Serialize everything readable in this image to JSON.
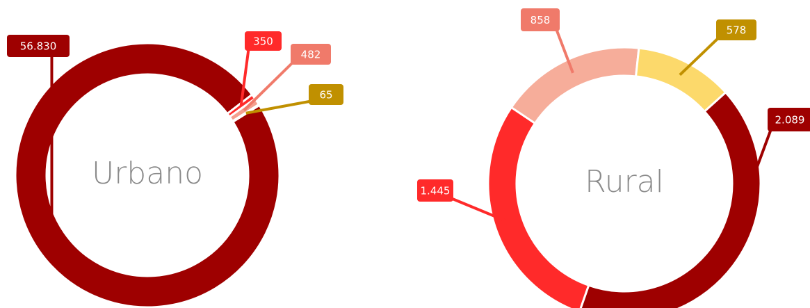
{
  "chart_data": [
    {
      "type": "donut",
      "title": "Urbano",
      "values": [
        56830,
        350,
        482,
        65
      ],
      "value_labels": [
        "56.830",
        "350",
        "482",
        "65"
      ],
      "colors": [
        "#9e0000",
        "#ff2a2a",
        "#f4a090",
        "#c09000"
      ],
      "label_colors": [
        "#9e0000",
        "#ff2a2a",
        "#f07a6a",
        "#c09000"
      ]
    },
    {
      "type": "donut",
      "title": "Rural",
      "values": [
        2089,
        1445,
        858,
        578
      ],
      "value_labels": [
        "2.089",
        "1.445",
        "858",
        "578"
      ],
      "colors": [
        "#9e0000",
        "#ff2a2a",
        "#f6ad9a",
        "#fcd96b"
      ],
      "label_colors": [
        "#9e0000",
        "#ff2a2a",
        "#f07a6a",
        "#c09000"
      ]
    }
  ]
}
